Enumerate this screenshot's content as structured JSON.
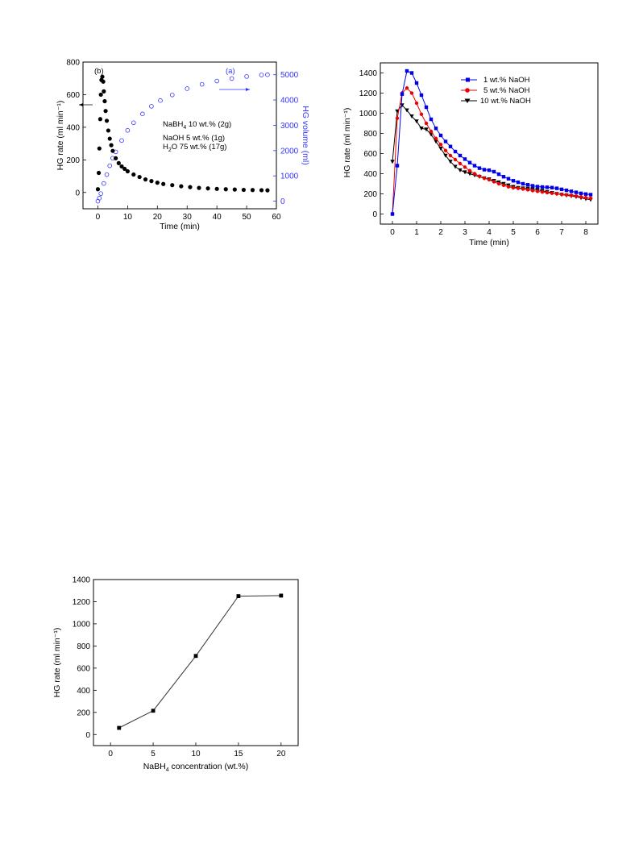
{
  "chart_data": [
    {
      "type": "scatter",
      "xlabel": "Time (min)",
      "ylabel": "HG rate (ml min⁻¹)",
      "y2label": "HG volume (ml)",
      "xlim": [
        -5,
        60
      ],
      "ylim": [
        -100,
        800
      ],
      "y2lim": [
        -300,
        5500
      ],
      "xticks": [
        "0",
        "10",
        "20",
        "30",
        "40",
        "50",
        "60"
      ],
      "yticks": [
        "0",
        "200",
        "400",
        "600",
        "800"
      ],
      "y2ticks": [
        "0",
        "1000",
        "2000",
        "3000",
        "4000",
        "5000"
      ],
      "labels": {
        "a": "(a)",
        "b": "(b)"
      },
      "legend_lines": [
        [
          "NaBH",
          "4",
          " 10 wt.%   (2g)"
        ],
        [
          "NaOH",
          "",
          "   5 wt.%   (1g)"
        ],
        [
          "H",
          "2",
          "O    75 wt.% (17g)"
        ]
      ],
      "series": [
        {
          "name": "HG rate",
          "axis": "left",
          "color": "#000000",
          "x": [
            0,
            0.3,
            0.5,
            0.8,
            1.0,
            1.2,
            1.5,
            1.8,
            2.0,
            2.3,
            2.6,
            3,
            3.5,
            4,
            4.5,
            5,
            6,
            7,
            8,
            9,
            10,
            12,
            14,
            16,
            18,
            20,
            22,
            25,
            28,
            31,
            34,
            37,
            40,
            43,
            46,
            49,
            52,
            55,
            57
          ],
          "values": [
            20,
            120,
            270,
            450,
            600,
            690,
            710,
            680,
            620,
            560,
            500,
            440,
            380,
            330,
            290,
            255,
            210,
            180,
            160,
            145,
            130,
            110,
            95,
            80,
            70,
            60,
            52,
            45,
            38,
            33,
            28,
            25,
            22,
            20,
            18,
            16,
            15,
            14,
            13
          ]
        },
        {
          "name": "HG volume",
          "axis": "right",
          "color": "#3333ff",
          "x": [
            0,
            0.5,
            1,
            2,
            3,
            4,
            5,
            6,
            8,
            10,
            12,
            15,
            18,
            21,
            25,
            30,
            35,
            40,
            45,
            50,
            55,
            57
          ],
          "values": [
            0,
            120,
            300,
            700,
            1050,
            1400,
            1700,
            1950,
            2400,
            2800,
            3100,
            3450,
            3750,
            3980,
            4200,
            4450,
            4620,
            4750,
            4850,
            4930,
            4990,
            5000
          ]
        }
      ]
    },
    {
      "type": "line",
      "xlabel": "Time (min)",
      "ylabel": "HG rate (ml min⁻¹)",
      "xlim": [
        -0.5,
        8.5
      ],
      "ylim": [
        -100,
        1500
      ],
      "xticks": [
        "0",
        "1",
        "2",
        "3",
        "4",
        "5",
        "6",
        "7",
        "8"
      ],
      "yticks": [
        "0",
        "200",
        "400",
        "600",
        "800",
        "1000",
        "1200",
        "1400"
      ],
      "legend_position": "top-right",
      "x": [
        0,
        0.2,
        0.4,
        0.6,
        0.8,
        1.0,
        1.2,
        1.4,
        1.6,
        1.8,
        2.0,
        2.2,
        2.4,
        2.6,
        2.8,
        3.0,
        3.2,
        3.4,
        3.6,
        3.8,
        4.0,
        4.2,
        4.4,
        4.6,
        4.8,
        5.0,
        5.2,
        5.4,
        5.6,
        5.8,
        6.0,
        6.2,
        6.4,
        6.6,
        6.8,
        7.0,
        7.2,
        7.4,
        7.6,
        7.8,
        8.0,
        8.2
      ],
      "series": [
        {
          "name": "1 wt.% NaOH",
          "color": "#0000ee",
          "marker": "square",
          "values": [
            0,
            480,
            1190,
            1420,
            1400,
            1300,
            1180,
            1060,
            940,
            850,
            780,
            720,
            670,
            620,
            580,
            545,
            510,
            480,
            455,
            440,
            435,
            420,
            395,
            370,
            350,
            330,
            315,
            300,
            290,
            280,
            272,
            268,
            265,
            262,
            255,
            245,
            235,
            225,
            215,
            205,
            198,
            192
          ]
        },
        {
          "name": "5 wt.% NaOH",
          "color": "#ee0000",
          "marker": "circle",
          "values": [
            0,
            950,
            1200,
            1250,
            1200,
            1100,
            990,
            900,
            820,
            750,
            690,
            630,
            580,
            540,
            500,
            465,
            430,
            400,
            375,
            355,
            340,
            320,
            300,
            285,
            270,
            260,
            255,
            248,
            240,
            232,
            225,
            218,
            212,
            206,
            200,
            195,
            190,
            185,
            178,
            170,
            162,
            155
          ]
        },
        {
          "name": "10 wt.% NaOH",
          "color": "#000000",
          "marker": "triangle-down",
          "values": [
            520,
            1020,
            1080,
            1030,
            970,
            920,
            850,
            840,
            790,
            720,
            650,
            580,
            520,
            470,
            435,
            415,
            400,
            385,
            370,
            355,
            345,
            330,
            315,
            300,
            285,
            270,
            260,
            255,
            252,
            248,
            240,
            230,
            220,
            210,
            200,
            192,
            185,
            178,
            170,
            160,
            150,
            142
          ]
        }
      ]
    },
    {
      "type": "line",
      "xlabel": [
        "NaBH",
        "4",
        " concentration (wt.%)"
      ],
      "ylabel": "HG rate (ml min⁻¹)",
      "xlim": [
        -2,
        22
      ],
      "ylim": [
        -100,
        1400
      ],
      "xticks": [
        "0",
        "5",
        "10",
        "15",
        "20"
      ],
      "yticks": [
        "0",
        "200",
        "400",
        "600",
        "800",
        "1000",
        "1200",
        "1400"
      ],
      "x": [
        1,
        5,
        10,
        15,
        20
      ],
      "series": [
        {
          "name": "HG rate",
          "color": "#000000",
          "marker": "square",
          "values": [
            60,
            215,
            710,
            1250,
            1255
          ]
        }
      ]
    }
  ]
}
